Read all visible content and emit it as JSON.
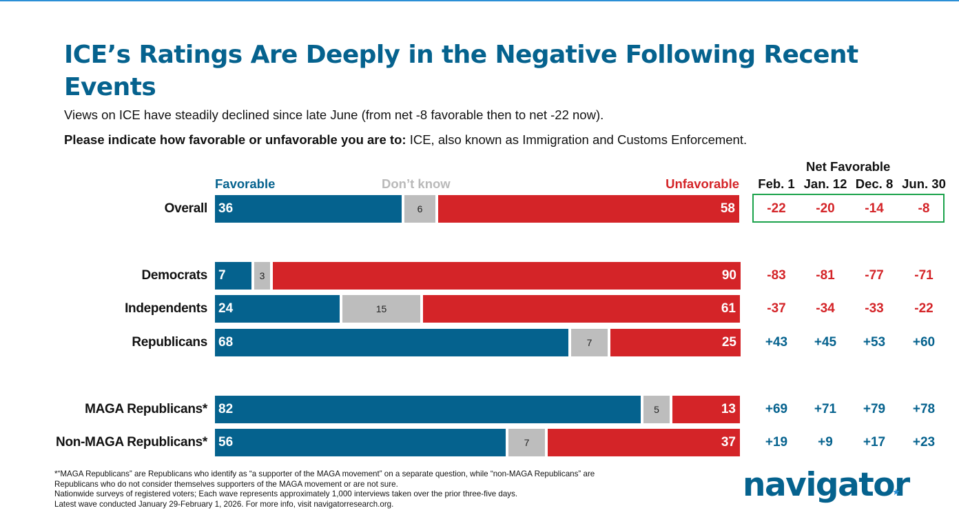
{
  "title": "ICE’s Ratings Are Deeply in the Negative Following Recent Events",
  "subtitle": "Views on ICE have steadily declined since late June (from net -8 favorable then to net -22 now).",
  "question": {
    "prefix": "Please indicate how favorable or unfavorable you are to:",
    "text": " ICE, also known as Immigration and Customs Enforcement."
  },
  "colors": {
    "favorable": "#05628e",
    "dont_know": "#bdbdbd",
    "unfavorable": "#d42428",
    "highlight": "#1aa24a"
  },
  "chart_data": {
    "type": "bar",
    "stacked": true,
    "orientation": "horizontal",
    "legend": [
      "Favorable",
      "Don’t know",
      "Unfavorable"
    ],
    "categories": [
      "Overall",
      "Democrats",
      "Independents",
      "Republicans",
      "MAGA Republicans*",
      "Non-MAGA Republicans*"
    ],
    "series": [
      {
        "name": "Favorable",
        "values": [
          36,
          7,
          24,
          68,
          82,
          56
        ]
      },
      {
        "name": "Don’t know",
        "values": [
          6,
          3,
          15,
          7,
          5,
          7
        ]
      },
      {
        "name": "Unfavorable",
        "values": [
          58,
          90,
          61,
          25,
          13,
          37
        ]
      }
    ],
    "net_favorable": {
      "title": "Net Favorable",
      "columns": [
        "Feb. 1",
        "Jan. 12",
        "Dec. 8",
        "Jun. 30"
      ],
      "rows": [
        [
          "-22",
          "-20",
          "-14",
          "-8"
        ],
        [
          "-83",
          "-81",
          "-77",
          "-71"
        ],
        [
          "-37",
          "-34",
          "-33",
          "-22"
        ],
        [
          "+43",
          "+45",
          "+53",
          "+60"
        ],
        [
          "+69",
          "+71",
          "+79",
          "+78"
        ],
        [
          "+19",
          "+9",
          "+17",
          "+23"
        ]
      ],
      "highlighted_row": "Overall"
    }
  },
  "footnote": [
    "*“MAGA Republicans” are Republicans who identify as “a supporter of the MAGA movement” on a separate question, while “non-MAGA Republicans” are",
    "Republicans who do not consider themselves supporters of the MAGA movement or are not sure.",
    "Nationwide surveys of registered voters; Each wave represents approximately 1,000 interviews taken over the prior three-five days.",
    "Latest wave conducted January 29-February 1, 2026. For more info, visit navigatorresearch.org."
  ],
  "logo": {
    "text": "navigator",
    "mark": "★"
  }
}
